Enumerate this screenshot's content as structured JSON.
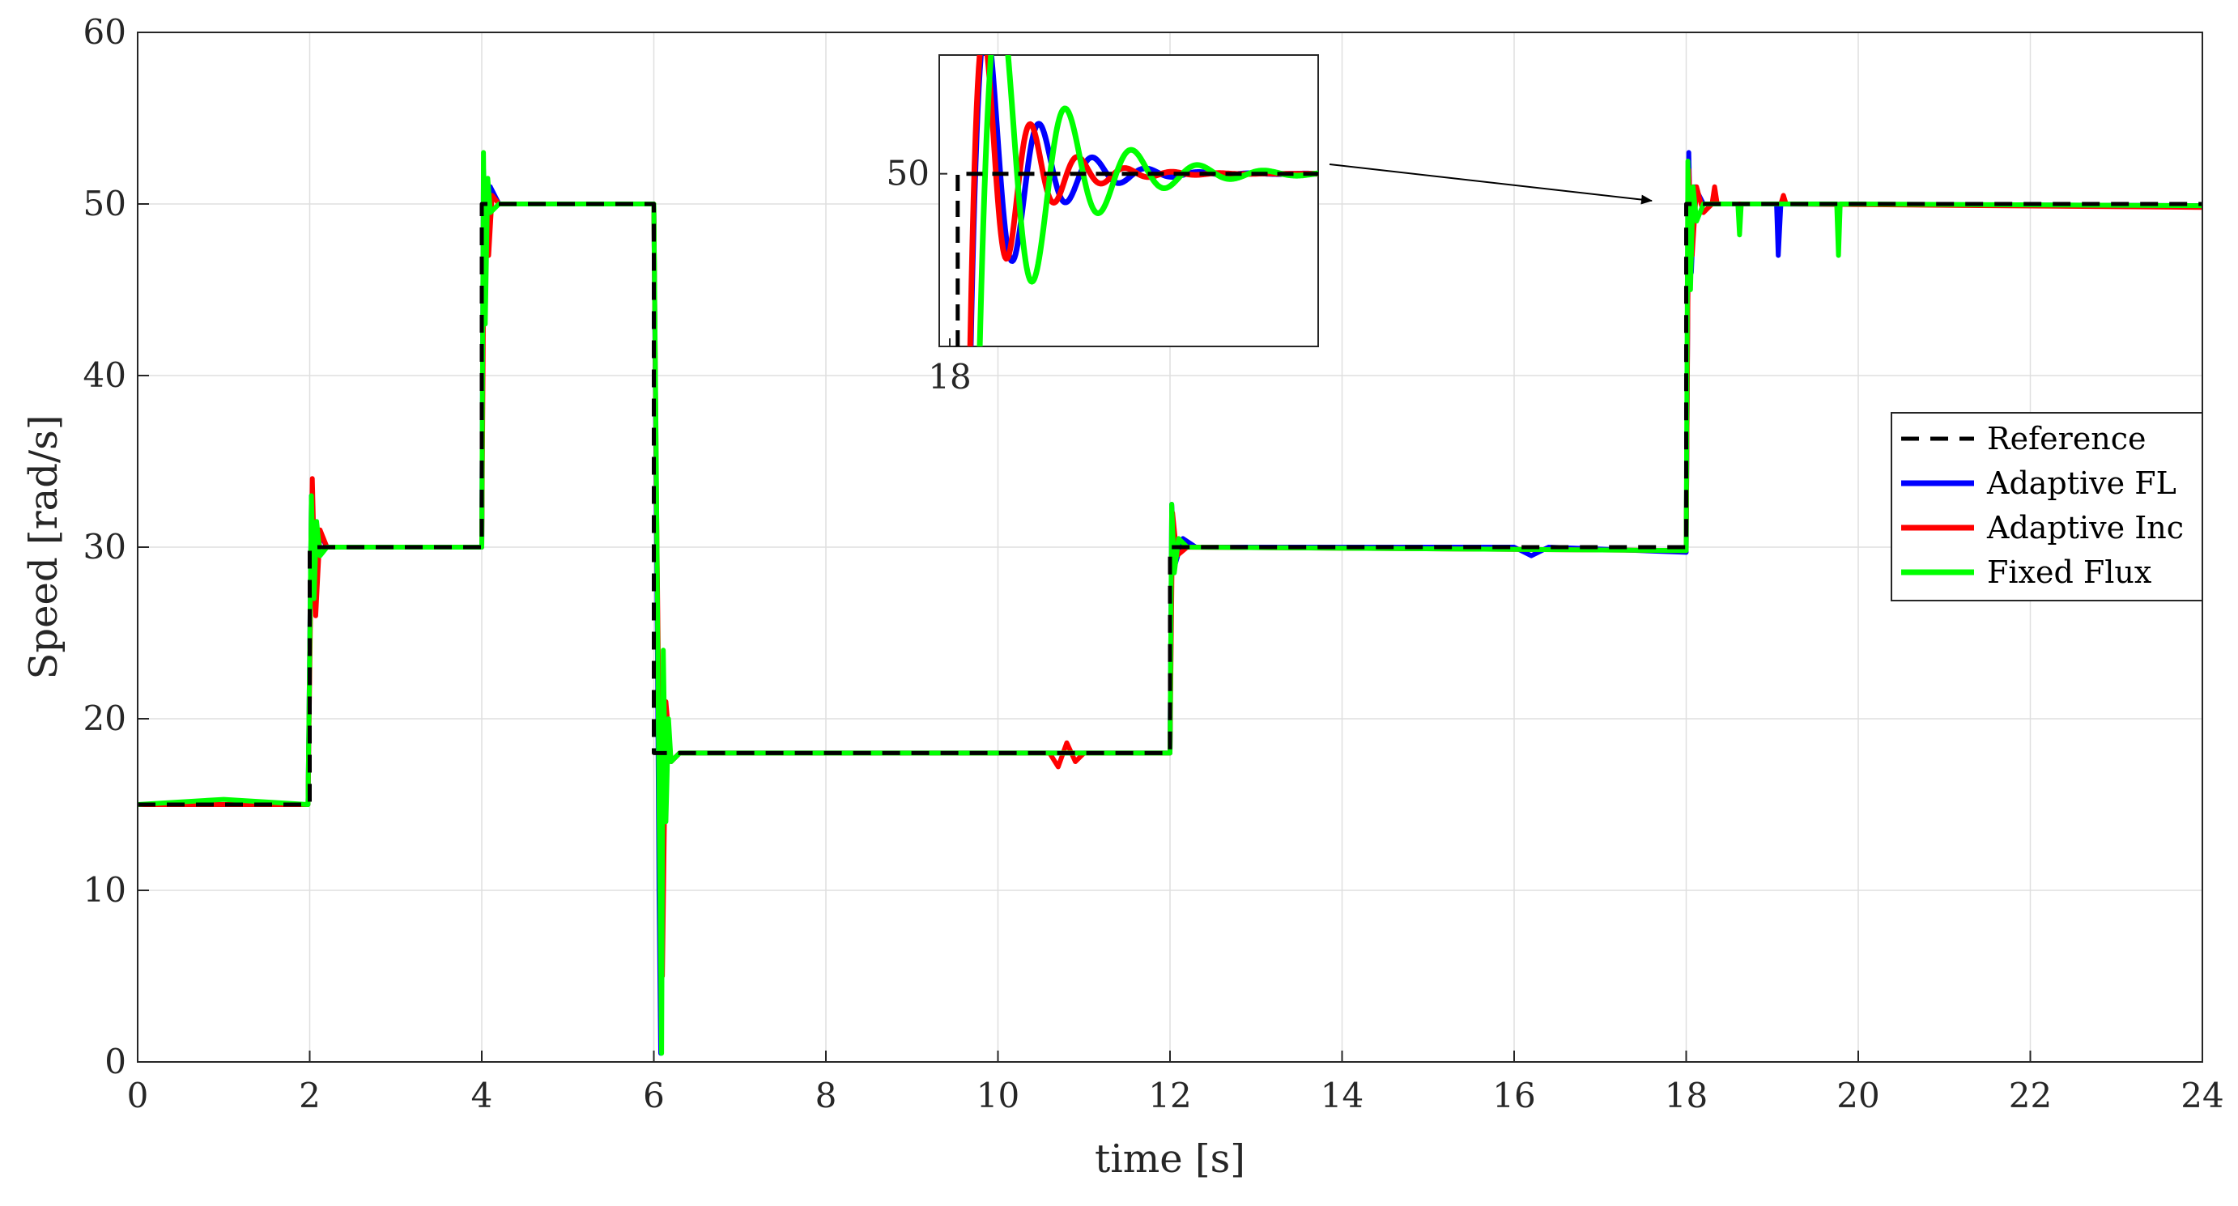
{
  "chart_data": {
    "type": "line",
    "xlabel": "time [s]",
    "ylabel": "Speed [rad/s]",
    "xlim": [
      0,
      24
    ],
    "ylim": [
      0,
      60
    ],
    "xticks": [
      "0",
      "2",
      "4",
      "6",
      "8",
      "10",
      "12",
      "14",
      "16",
      "18",
      "20",
      "22",
      "24"
    ],
    "yticks": [
      "0",
      "10",
      "20",
      "30",
      "40",
      "50",
      "60"
    ],
    "grid": true,
    "legend_position": "right",
    "series": [
      {
        "name": "Reference",
        "color": "#000000",
        "style": "dashed",
        "x": [
          0,
          2,
          2,
          4,
          4,
          6,
          6,
          12,
          12,
          18,
          18,
          24
        ],
        "y": [
          15,
          15,
          30,
          30,
          50,
          50,
          18,
          18,
          30,
          30,
          50,
          50
        ]
      },
      {
        "name": "Adaptive FL",
        "color": "#0000ff",
        "style": "solid",
        "x": [
          0,
          1.98,
          2.02,
          2.06,
          2.1,
          2.2,
          4,
          4.02,
          4.06,
          4.1,
          4.2,
          6,
          6.02,
          6.04,
          6.06,
          6.08,
          6.1,
          6.12,
          6.15,
          6.2,
          6.3,
          12,
          12.02,
          12.06,
          12.15,
          12.3,
          16,
          16.2,
          16.4,
          18,
          18.03,
          18.06,
          18.1,
          18.2,
          19.05,
          19.07,
          19.1,
          24
        ],
        "y": [
          15,
          15,
          33,
          29,
          31,
          30,
          30,
          52,
          48,
          51,
          50,
          50,
          38,
          25,
          10,
          0.5,
          22,
          16,
          19,
          17.5,
          18,
          18,
          32.5,
          29,
          30.5,
          30,
          30,
          29.5,
          30,
          29.7,
          53,
          46,
          51,
          50,
          50,
          47,
          50,
          49.9
        ]
      },
      {
        "name": "Adaptive Inc",
        "color": "#ff0000",
        "style": "solid",
        "x": [
          0,
          1.98,
          2.03,
          2.07,
          2.12,
          2.2,
          4,
          4.03,
          4.08,
          4.12,
          4.2,
          6,
          6.03,
          6.06,
          6.1,
          6.14,
          6.2,
          6.3,
          10.6,
          10.7,
          10.8,
          10.9,
          11,
          12,
          12.03,
          12.08,
          12.2,
          18,
          18.03,
          18.07,
          18.12,
          18.2,
          18.3,
          18.33,
          18.36,
          19.1,
          19.13,
          19.16,
          24
        ],
        "y": [
          15,
          15,
          34,
          26,
          31,
          30,
          30,
          51,
          47,
          50.5,
          50,
          50,
          33,
          20,
          5,
          21,
          17.5,
          18,
          18,
          17.2,
          18.6,
          17.5,
          18,
          18,
          32,
          29.5,
          30,
          29.8,
          52,
          47,
          51,
          49.5,
          50,
          51,
          50,
          50,
          50.5,
          50,
          49.8
        ]
      },
      {
        "name": "Fixed Flux",
        "color": "#00ff00",
        "style": "solid",
        "x": [
          0,
          1,
          1.98,
          2.02,
          2.05,
          2.08,
          2.12,
          2.2,
          4,
          4.02,
          4.04,
          4.07,
          4.1,
          4.2,
          6,
          6.03,
          6.06,
          6.09,
          6.11,
          6.14,
          6.17,
          6.2,
          6.3,
          12,
          12.02,
          12.05,
          12.1,
          12.2,
          18,
          18.02,
          18.05,
          18.08,
          18.12,
          18.2,
          18.6,
          18.62,
          18.64,
          19.75,
          19.77,
          19.79,
          24
        ],
        "y": [
          15,
          15.3,
          15,
          33,
          27,
          31.5,
          29.5,
          30,
          30,
          53,
          43,
          51.5,
          49.5,
          50,
          50,
          34,
          15,
          0.5,
          24,
          14,
          20,
          17.5,
          18,
          18,
          32.5,
          28.5,
          30.5,
          30,
          29.8,
          52.5,
          45,
          51,
          49,
          50,
          50,
          48.2,
          50,
          50,
          47,
          50,
          49.9
        ]
      }
    ],
    "inset": {
      "xtick": "18",
      "ytick": "50",
      "xlim": [
        17.96,
        19.4
      ],
      "ylim": [
        42,
        55.5
      ],
      "x0": 18.03,
      "tref": 18.16,
      "y_ref_before": 42,
      "series_params": [
        {
          "name": "Reference",
          "delay": 0.0,
          "amp": 0,
          "omega": 0,
          "decay": 0
        },
        {
          "name": "Adaptive FL",
          "delay": 0.02,
          "amp": 8.5,
          "omega": 31,
          "decay": 5.5
        },
        {
          "name": "Adaptive Inc",
          "delay": 0.02,
          "amp": 8.0,
          "omega": 35,
          "decay": 6.0
        },
        {
          "name": "Fixed Flux",
          "delay": 0.05,
          "amp": 9.5,
          "omega": 25,
          "decay": 4.0
        }
      ]
    }
  }
}
